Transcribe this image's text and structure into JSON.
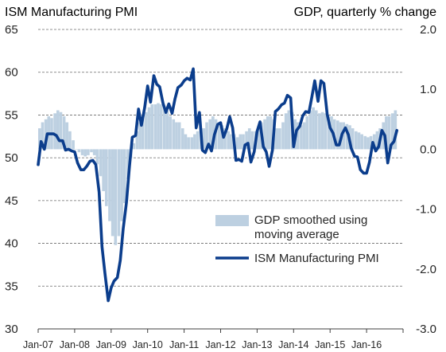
{
  "chart_data": {
    "type": "bar+line",
    "left_title": "ISM Manufacturing PMI",
    "right_title": "GDP, quarterly % change",
    "y_left": {
      "lim": [
        30,
        65
      ],
      "ticks": [
        30,
        35,
        40,
        45,
        50,
        55,
        60,
        65
      ]
    },
    "y_right": {
      "lim": [
        -3.0,
        2.0
      ],
      "ticks": [
        "-3.0",
        "-2.0",
        "-1.0",
        "0.0",
        "1.0",
        "2.0"
      ]
    },
    "x_ticks": [
      "Jan-07",
      "Jan-08",
      "Jan-09",
      "Jan-10",
      "Jan-11",
      "Jan-12",
      "Jan-13",
      "Jan-14",
      "Jan-15",
      "Jan-16"
    ],
    "x_range": [
      2007.0,
      2017.0
    ],
    "grid": "horizontal dashed",
    "legend": [
      {
        "label_lines": [
          "GDP smoothed using",
          "moving average"
        ],
        "color": "#bdd0e1",
        "kind": "bar"
      },
      {
        "label_lines": [
          "ISM Manufacturing PMI"
        ],
        "color": "#0b3d8c",
        "kind": "line"
      }
    ],
    "series": [
      {
        "name": "GDP smoothed using moving average",
        "axis": "right",
        "kind": "bar",
        "color": "#bdd0e1",
        "x": [
          2007.04,
          2007.12,
          2007.21,
          2007.29,
          2007.37,
          2007.46,
          2007.54,
          2007.62,
          2007.71,
          2007.79,
          2007.87,
          2007.96,
          2008.04,
          2008.12,
          2008.21,
          2008.29,
          2008.37,
          2008.46,
          2008.54,
          2008.62,
          2008.71,
          2008.79,
          2008.87,
          2008.96,
          2009.04,
          2009.12,
          2009.21,
          2009.29,
          2009.37,
          2009.46,
          2009.54,
          2009.62,
          2009.71,
          2009.79,
          2009.87,
          2009.96,
          2010.04,
          2010.12,
          2010.21,
          2010.29,
          2010.37,
          2010.46,
          2010.54,
          2010.62,
          2010.71,
          2010.79,
          2010.87,
          2010.96,
          2011.04,
          2011.12,
          2011.21,
          2011.29,
          2011.37,
          2011.46,
          2011.54,
          2011.62,
          2011.71,
          2011.79,
          2011.87,
          2011.96,
          2012.04,
          2012.12,
          2012.21,
          2012.29,
          2012.37,
          2012.46,
          2012.54,
          2012.62,
          2012.71,
          2012.79,
          2012.87,
          2012.96,
          2013.04,
          2013.12,
          2013.21,
          2013.29,
          2013.37,
          2013.46,
          2013.54,
          2013.62,
          2013.71,
          2013.79,
          2013.87,
          2013.96,
          2014.04,
          2014.12,
          2014.21,
          2014.29,
          2014.37,
          2014.46,
          2014.54,
          2014.62,
          2014.71,
          2014.79,
          2014.87,
          2014.96,
          2015.04,
          2015.12,
          2015.21,
          2015.29,
          2015.37,
          2015.46,
          2015.54,
          2015.62,
          2015.71,
          2015.79,
          2015.87,
          2015.96,
          2016.04,
          2016.12,
          2016.21,
          2016.29,
          2016.37,
          2016.46,
          2016.54,
          2016.62,
          2016.71,
          2016.79
        ],
        "values": [
          0.35,
          0.45,
          0.5,
          0.55,
          0.52,
          0.6,
          0.65,
          0.62,
          0.55,
          0.45,
          0.3,
          0.15,
          0.0,
          -0.05,
          -0.1,
          -0.12,
          -0.1,
          -0.05,
          -0.1,
          -0.25,
          -0.45,
          -0.7,
          -0.95,
          -1.2,
          -1.45,
          -1.6,
          -1.45,
          -1.2,
          -0.9,
          -0.5,
          -0.15,
          0.1,
          0.3,
          0.45,
          0.52,
          0.62,
          0.7,
          0.75,
          0.75,
          0.77,
          0.75,
          0.72,
          0.65,
          0.55,
          0.5,
          0.45,
          0.45,
          0.35,
          0.25,
          0.2,
          0.2,
          0.25,
          0.3,
          0.35,
          0.35,
          0.45,
          0.5,
          0.55,
          0.5,
          0.45,
          0.4,
          0.35,
          0.3,
          0.25,
          0.25,
          0.2,
          0.25,
          0.25,
          0.3,
          0.35,
          0.3,
          0.3,
          0.35,
          0.45,
          0.5,
          0.55,
          0.55,
          0.5,
          0.35,
          0.35,
          0.45,
          0.6,
          0.65,
          0.62,
          0.5,
          0.45,
          0.4,
          0.45,
          0.55,
          0.65,
          0.7,
          0.65,
          0.6,
          0.62,
          0.6,
          0.55,
          0.55,
          0.5,
          0.48,
          0.45,
          0.45,
          0.42,
          0.4,
          0.35,
          0.3,
          0.28,
          0.25,
          0.22,
          0.2,
          0.22,
          0.25,
          0.3,
          0.35,
          0.45,
          0.55,
          0.55,
          0.6,
          0.65
        ]
      },
      {
        "name": "ISM Manufacturing PMI",
        "axis": "left",
        "kind": "line",
        "color": "#0b3d8c",
        "x": [
          2007.0,
          2007.08,
          2007.17,
          2007.25,
          2007.33,
          2007.42,
          2007.5,
          2007.58,
          2007.67,
          2007.75,
          2007.83,
          2007.92,
          2008.0,
          2008.08,
          2008.17,
          2008.25,
          2008.33,
          2008.42,
          2008.5,
          2008.58,
          2008.67,
          2008.75,
          2008.83,
          2008.92,
          2009.0,
          2009.08,
          2009.17,
          2009.25,
          2009.33,
          2009.42,
          2009.5,
          2009.58,
          2009.67,
          2009.75,
          2009.83,
          2009.92,
          2010.0,
          2010.08,
          2010.17,
          2010.25,
          2010.33,
          2010.42,
          2010.5,
          2010.58,
          2010.67,
          2010.75,
          2010.83,
          2010.92,
          2011.0,
          2011.08,
          2011.17,
          2011.25,
          2011.33,
          2011.42,
          2011.5,
          2011.58,
          2011.67,
          2011.75,
          2011.83,
          2011.92,
          2012.0,
          2012.08,
          2012.17,
          2012.25,
          2012.33,
          2012.42,
          2012.5,
          2012.58,
          2012.67,
          2012.75,
          2012.83,
          2012.92,
          2013.0,
          2013.08,
          2013.17,
          2013.25,
          2013.33,
          2013.42,
          2013.5,
          2013.58,
          2013.67,
          2013.75,
          2013.83,
          2013.92,
          2014.0,
          2014.08,
          2014.17,
          2014.25,
          2014.33,
          2014.42,
          2014.5,
          2014.58,
          2014.67,
          2014.75,
          2014.83,
          2014.92,
          2015.0,
          2015.08,
          2015.17,
          2015.25,
          2015.33,
          2015.42,
          2015.5,
          2015.58,
          2015.67,
          2015.75,
          2015.83,
          2015.92,
          2016.0,
          2016.08,
          2016.17,
          2016.25,
          2016.33,
          2016.42,
          2016.5,
          2016.58,
          2016.67,
          2016.75,
          2016.83
        ],
        "values": [
          49.2,
          51.9,
          51.0,
          52.8,
          52.8,
          52.8,
          52.6,
          52.0,
          52.0,
          50.9,
          51.0,
          50.8,
          50.7,
          49.4,
          48.6,
          48.6,
          49.0,
          49.6,
          49.7,
          49.2,
          46.0,
          39.6,
          36.5,
          33.3,
          34.8,
          35.6,
          36.0,
          38.0,
          41.7,
          44.8,
          48.9,
          52.4,
          52.6,
          55.7,
          53.8,
          55.9,
          58.4,
          56.5,
          59.6,
          58.6,
          58.3,
          56.4,
          55.3,
          56.3,
          55.2,
          56.9,
          58.2,
          58.5,
          59.0,
          59.3,
          59.1,
          60.4,
          53.5,
          55.3,
          50.9,
          50.6,
          51.6,
          50.8,
          52.7,
          53.9,
          54.1,
          52.4,
          53.4,
          54.8,
          53.5,
          49.7,
          49.8,
          49.6,
          51.5,
          51.7,
          49.5,
          50.7,
          53.1,
          54.2,
          51.3,
          50.7,
          49.0,
          50.9,
          55.4,
          55.7,
          56.2,
          56.4,
          57.3,
          57.0,
          51.3,
          53.2,
          53.7,
          54.9,
          55.4,
          55.3,
          57.1,
          59.0,
          56.6,
          59.0,
          58.7,
          55.1,
          53.5,
          52.9,
          51.5,
          51.5,
          52.8,
          53.5,
          52.7,
          51.1,
          50.2,
          50.1,
          48.6,
          48.2,
          48.2,
          49.5,
          51.8,
          50.8,
          51.3,
          53.2,
          52.6,
          49.4,
          51.5,
          51.9,
          53.2
        ]
      }
    ]
  }
}
